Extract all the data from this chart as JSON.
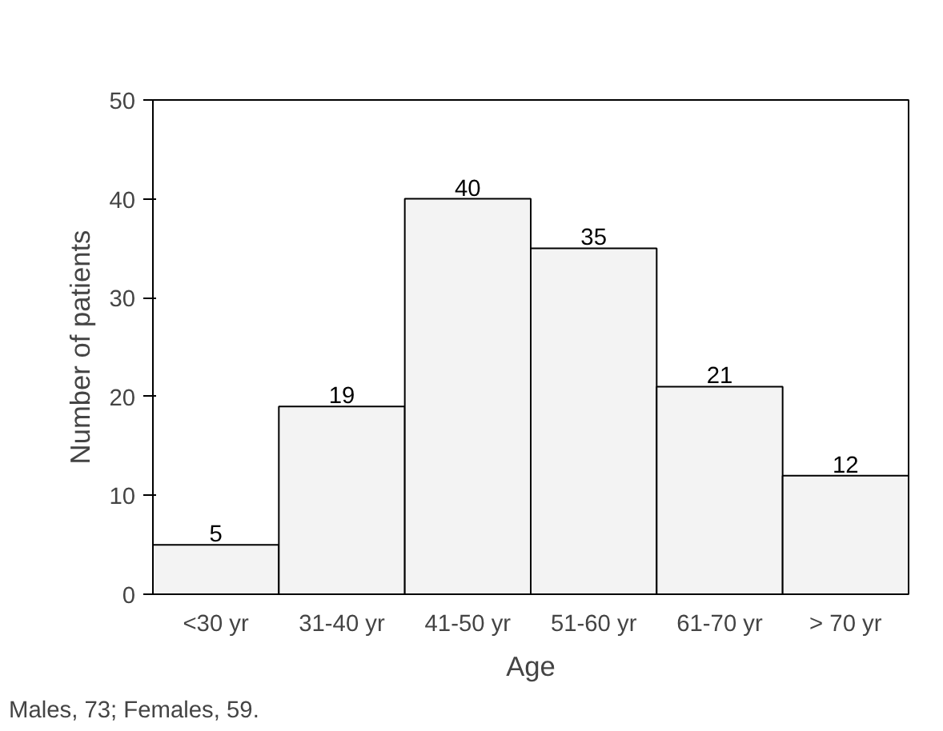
{
  "chart_data": {
    "type": "bar",
    "xlabel": "Age",
    "ylabel": "Number of patients",
    "categories": [
      "<30 yr",
      "31-40 yr",
      "41-50 yr",
      "51-60 yr",
      "61-70 yr",
      "> 70 yr"
    ],
    "values": [
      5,
      19,
      40,
      35,
      21,
      12
    ],
    "color": "#f3f3f3",
    "ylim": [
      0,
      50
    ],
    "yticks": [
      0,
      10,
      20,
      30,
      40,
      50
    ],
    "grid": false,
    "data_labels": true,
    "annotations": [
      "Males, 73; Females, 59."
    ]
  }
}
